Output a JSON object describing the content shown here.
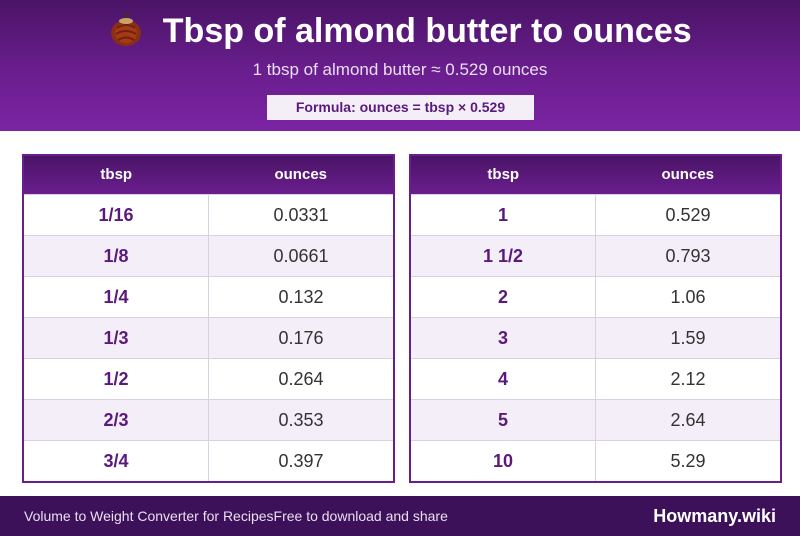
{
  "header": {
    "title": "Tbsp of almond butter to ounces",
    "icon": "nut-icon",
    "subtitle": "1 tbsp of almond butter ≈ 0.529 ounces",
    "formula": "Formula: ounces = tbsp × 0.529"
  },
  "colors": {
    "primary": "#6a1e8e",
    "dark": "#3d1159",
    "accent_text": "#5a1a7c",
    "alt_row": "#f3eef8"
  },
  "tables": [
    {
      "headers": [
        "tbsp",
        "ounces"
      ],
      "rows": [
        [
          "1/16",
          "0.0331"
        ],
        [
          "1/8",
          "0.0661"
        ],
        [
          "1/4",
          "0.132"
        ],
        [
          "1/3",
          "0.176"
        ],
        [
          "1/2",
          "0.264"
        ],
        [
          "2/3",
          "0.353"
        ],
        [
          "3/4",
          "0.397"
        ]
      ]
    },
    {
      "headers": [
        "tbsp",
        "ounces"
      ],
      "rows": [
        [
          "1",
          "0.529"
        ],
        [
          "1 1/2",
          "0.793"
        ],
        [
          "2",
          "1.06"
        ],
        [
          "3",
          "1.59"
        ],
        [
          "4",
          "2.12"
        ],
        [
          "5",
          "2.64"
        ],
        [
          "10",
          "5.29"
        ]
      ]
    }
  ],
  "footer": {
    "left_text": "Volume to Weight Converter for RecipesFree to download and share",
    "brand": "Howmany.wiki"
  }
}
